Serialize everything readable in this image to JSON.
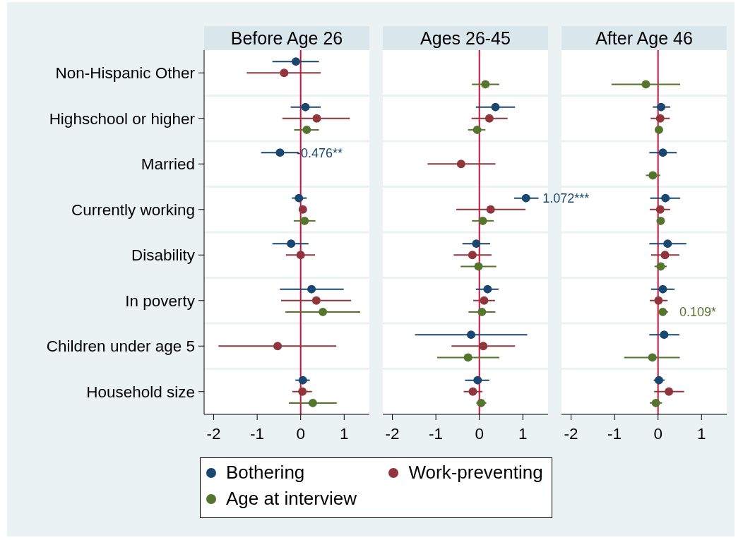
{
  "chart_data": [
    {
      "type": "scatter",
      "title": "Before Age 26",
      "orientation": "horizontal",
      "categories": [
        "Non-Hispanic Other",
        "Highschool or higher",
        "Married",
        "Currently working",
        "Disability",
        "In poverty",
        "Children under age 5",
        "Household size"
      ],
      "series": [
        {
          "name": "Bothering",
          "color": "#1a476f",
          "values": [
            -0.11,
            0.11,
            -0.476,
            -0.04,
            -0.22,
            0.25,
            null,
            0.05
          ],
          "errors": [
            [
              -0.65,
              0.42
            ],
            [
              -0.23,
              0.46
            ],
            [
              -0.91,
              -0.04
            ],
            [
              -0.2,
              0.14
            ],
            [
              -0.65,
              0.18
            ],
            [
              -0.48,
              0.99
            ],
            null,
            [
              -0.12,
              0.21
            ]
          ],
          "value_labels": [
            null,
            null,
            "-0.476**",
            null,
            null,
            null,
            null,
            null
          ]
        },
        {
          "name": "Work-preventing",
          "color": "#90353b",
          "values": [
            -0.38,
            0.37,
            null,
            0.05,
            0.0,
            0.36,
            -0.53,
            0.04
          ],
          "errors": [
            [
              -1.24,
              0.46
            ],
            [
              -0.42,
              1.13
            ],
            null,
            null,
            [
              -0.34,
              0.33
            ],
            [
              -0.45,
              1.16
            ],
            [
              -1.89,
              0.82
            ],
            [
              -0.19,
              0.26
            ]
          ]
        },
        {
          "name": "Age at interview",
          "color": "#55752f",
          "values": [
            null,
            0.14,
            null,
            0.09,
            null,
            0.51,
            null,
            0.28
          ],
          "errors": [
            null,
            [
              -0.15,
              0.42
            ],
            null,
            [
              -0.16,
              0.34
            ],
            null,
            [
              -0.35,
              1.37
            ],
            null,
            [
              -0.27,
              0.83
            ]
          ]
        }
      ],
      "xlim": [
        -2.22,
        1.58
      ],
      "xticks": [
        -2,
        -1,
        0,
        1
      ],
      "ref_lines": [
        {
          "axis": "x",
          "value": 0,
          "color": "#c8143c"
        }
      ],
      "grid": "y",
      "marker": "circle",
      "legend": "bottom"
    },
    {
      "type": "scatter",
      "title": "Ages 26-45",
      "orientation": "horizontal",
      "categories": [
        null,
        null,
        null,
        null,
        null,
        null,
        null,
        null
      ],
      "series": [
        {
          "color": "#1a476f",
          "values": [
            null,
            0.37,
            null,
            1.072,
            -0.07,
            0.19,
            -0.19,
            -0.04
          ],
          "errors": [
            null,
            [
              -0.08,
              0.82
            ],
            null,
            [
              0.8,
              1.36
            ],
            [
              -0.39,
              0.25
            ],
            [
              -0.08,
              0.44
            ],
            [
              -1.48,
              1.1
            ],
            [
              -0.33,
              0.23
            ]
          ],
          "value_labels": [
            null,
            null,
            null,
            "1.072***",
            null,
            null,
            null,
            null
          ]
        },
        {
          "color": "#90353b",
          "values": [
            null,
            0.23,
            -0.42,
            0.26,
            -0.16,
            0.11,
            0.09,
            -0.15
          ],
          "errors": [
            null,
            [
              -0.18,
              0.65
            ],
            [
              -1.19,
              0.37
            ],
            [
              -0.53,
              1.06
            ],
            [
              -0.59,
              0.28
            ],
            [
              -0.14,
              0.36
            ],
            [
              -0.64,
              0.82
            ],
            [
              -0.36,
              0.07
            ]
          ]
        },
        {
          "color": "#55752f",
          "values": [
            0.14,
            -0.05,
            null,
            0.08,
            -0.02,
            0.06,
            -0.26,
            0.04
          ],
          "errors": [
            [
              -0.17,
              0.46
            ],
            [
              -0.26,
              0.14
            ],
            null,
            [
              -0.17,
              0.33
            ],
            [
              -0.43,
              0.39
            ],
            [
              -0.25,
              0.37
            ],
            [
              -0.97,
              0.46
            ],
            [
              -0.07,
              0.16
            ]
          ]
        }
      ],
      "xlim": [
        -2.22,
        1.58
      ],
      "xticks": [
        -2,
        -1,
        0,
        1
      ],
      "ref_lines": [
        {
          "axis": "x",
          "value": 0,
          "color": "#c8143c"
        }
      ],
      "grid": "y",
      "marker": "circle",
      "tick_labels": "x"
    },
    {
      "type": "scatter",
      "title": "After Age 46",
      "orientation": "horizontal",
      "categories": [
        null,
        null,
        null,
        null,
        null,
        null,
        null,
        null
      ],
      "series": [
        {
          "color": "#1a476f",
          "values": [
            null,
            0.07,
            0.11,
            0.17,
            0.22,
            0.11,
            0.14,
            0.02
          ],
          "errors": [
            null,
            [
              -0.12,
              0.28
            ],
            [
              -0.2,
              0.43
            ],
            [
              -0.18,
              0.51
            ],
            [
              -0.2,
              0.65
            ],
            [
              -0.16,
              0.38
            ],
            [
              -0.2,
              0.49
            ],
            [
              -0.1,
              0.15
            ]
          ]
        },
        {
          "color": "#90353b",
          "values": [
            null,
            0.05,
            null,
            0.05,
            0.16,
            0.01,
            null,
            0.25
          ],
          "errors": [
            null,
            [
              -0.17,
              0.27
            ],
            null,
            [
              -0.19,
              0.28
            ],
            [
              -0.16,
              0.49
            ],
            [
              -0.19,
              0.22
            ],
            null,
            [
              -0.09,
              0.6
            ]
          ]
        },
        {
          "color": "#55752f",
          "values": [
            -0.28,
            0.02,
            -0.12,
            0.06,
            0.06,
            0.109,
            -0.13,
            -0.05
          ],
          "errors": [
            [
              -1.07,
              0.51
            ],
            null,
            [
              -0.28,
              0.05
            ],
            null,
            [
              -0.08,
              0.2
            ],
            [
              0.01,
              0.23
            ],
            [
              -0.78,
              0.5
            ],
            [
              -0.19,
              0.09
            ]
          ],
          "value_labels": [
            null,
            null,
            null,
            null,
            null,
            "0.109*",
            null,
            null
          ]
        }
      ],
      "xlim": [
        -2.22,
        1.58
      ],
      "xticks": [
        -2,
        -1,
        0,
        1
      ],
      "ref_lines": [
        {
          "axis": "x",
          "value": 0,
          "color": "#c8143c"
        }
      ],
      "grid": "y",
      "marker": "circle",
      "tick_labels": "x"
    }
  ]
}
